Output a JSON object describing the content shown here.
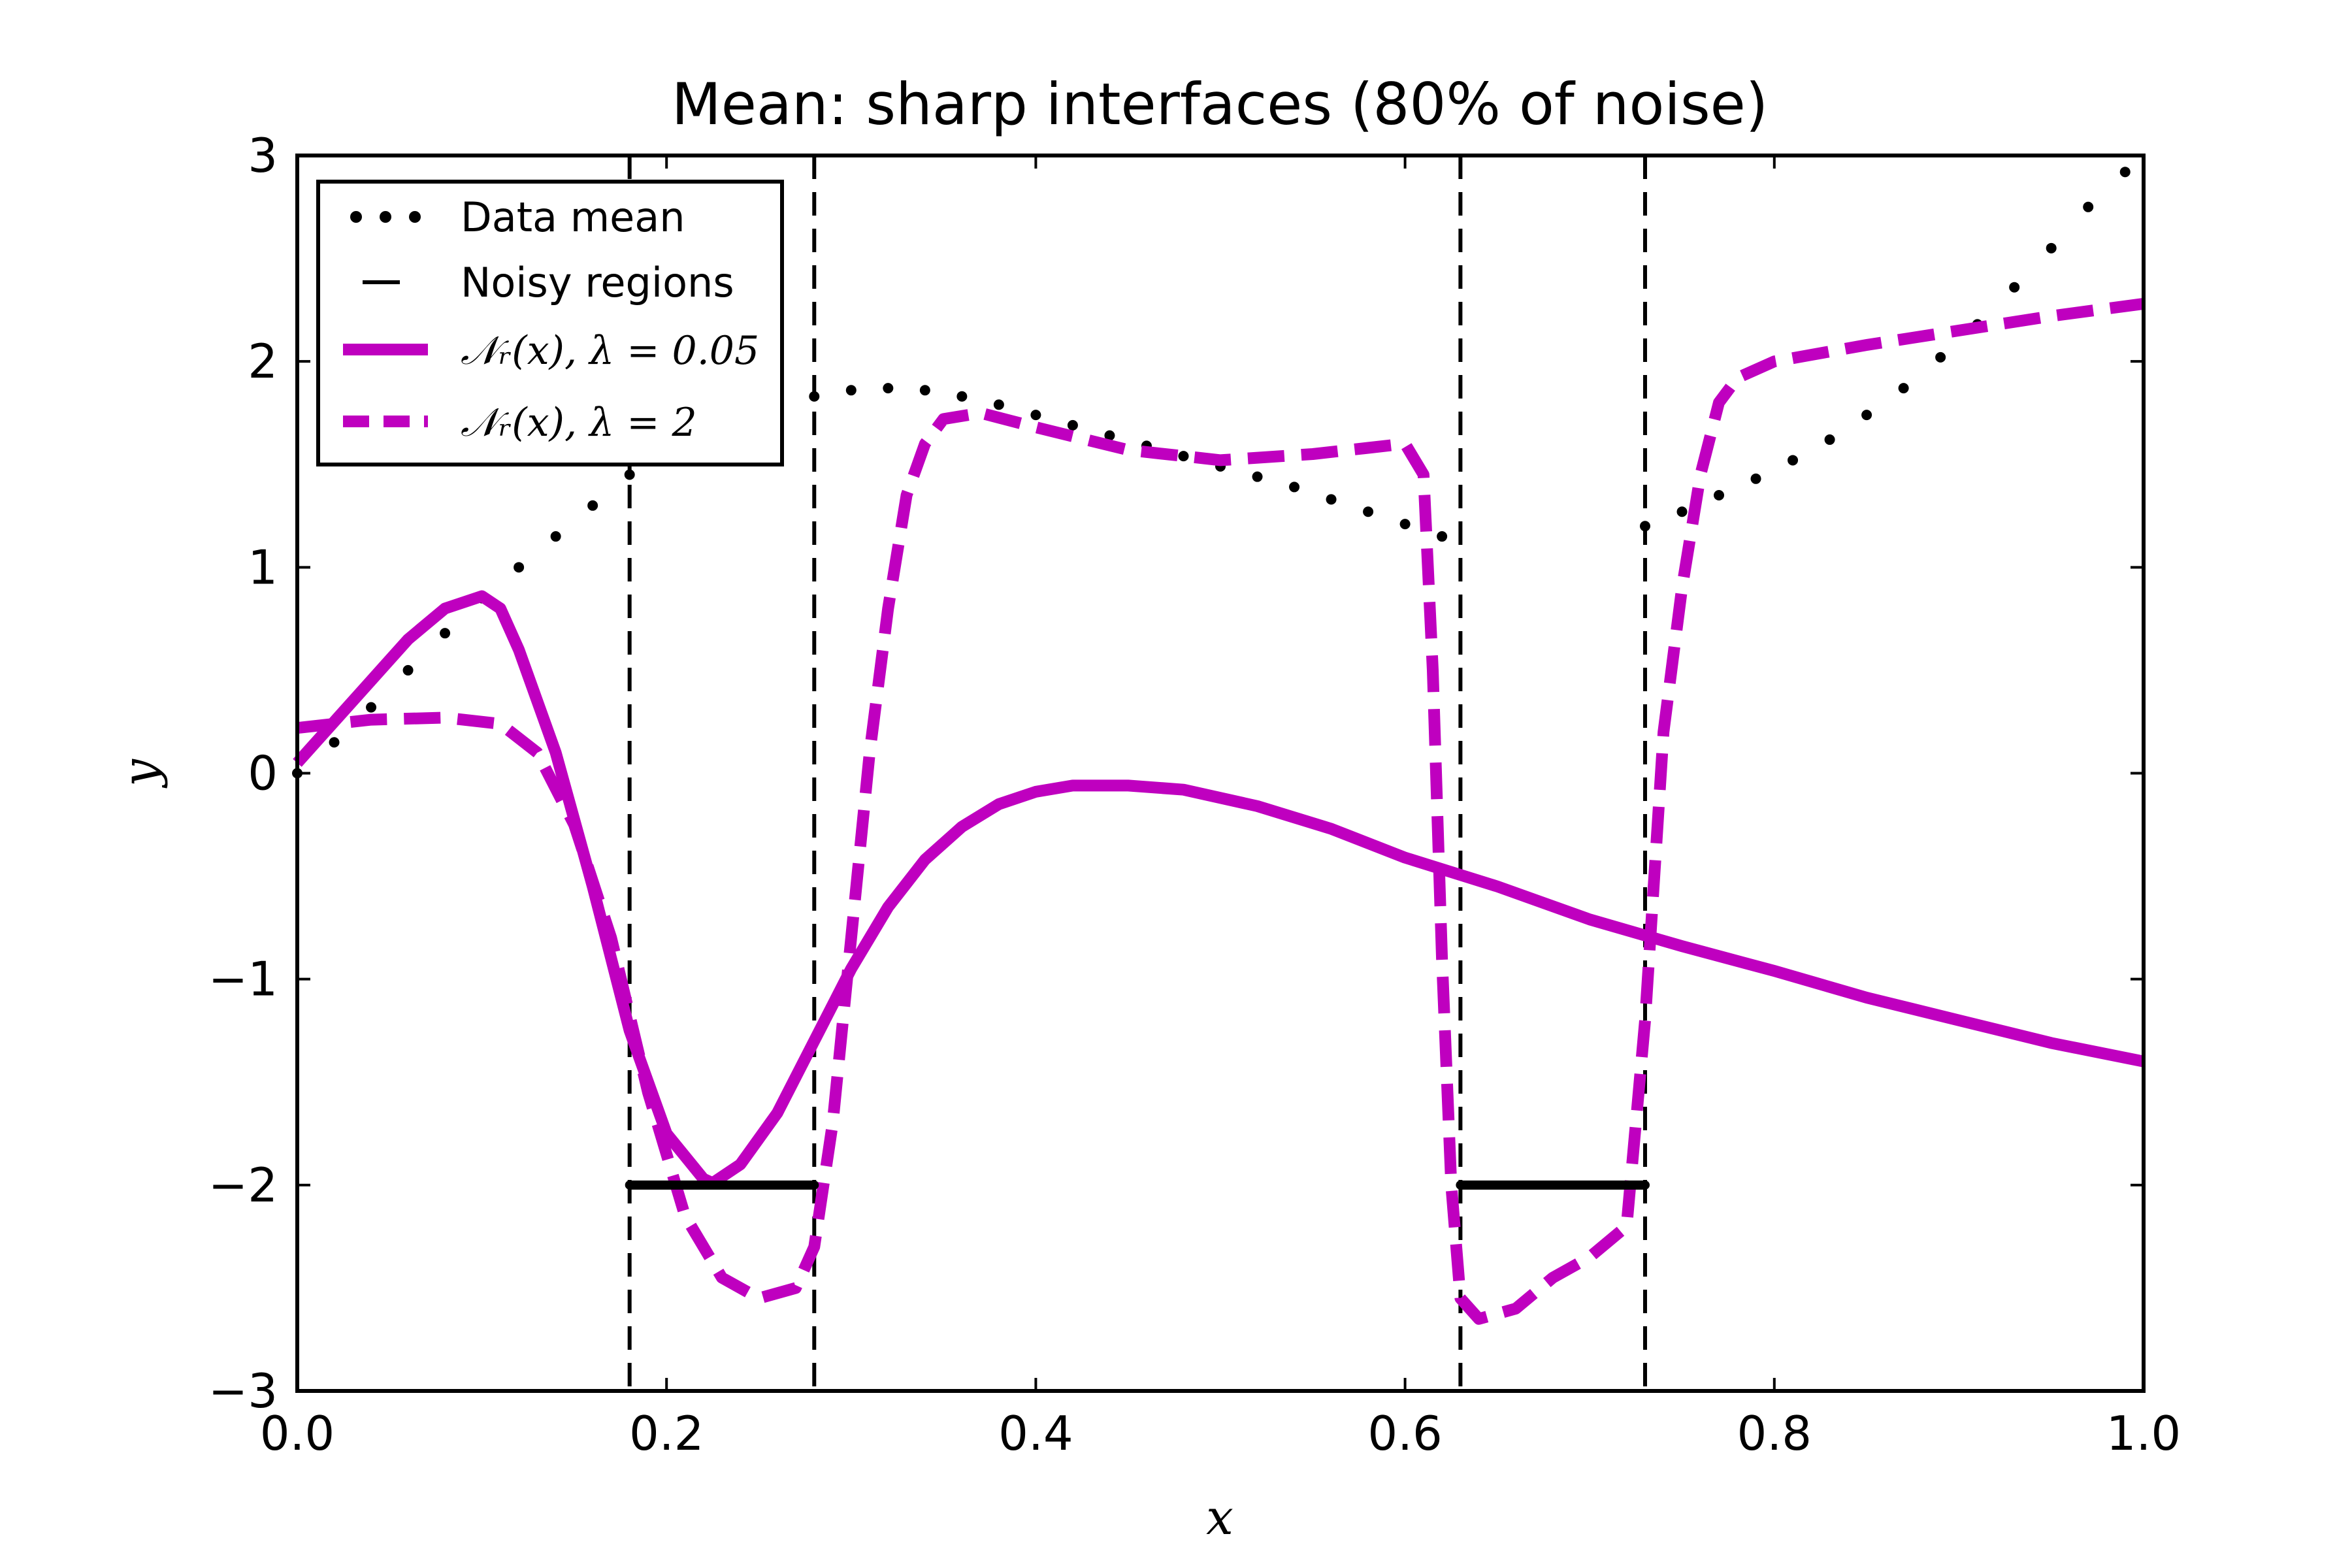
{
  "chart_data": {
    "type": "line",
    "title": "Mean: sharp interfaces (80% of noise)",
    "xlabel": "x",
    "ylabel": "y",
    "xlim": [
      0.0,
      1.0
    ],
    "ylim": [
      -3,
      3
    ],
    "xticks": [
      0.0,
      0.2,
      0.4,
      0.6,
      0.8,
      1.0
    ],
    "xtick_labels": [
      "0.0",
      "0.2",
      "0.4",
      "0.6",
      "0.8",
      "1.0"
    ],
    "yticks": [
      3,
      2,
      1,
      0,
      -1,
      -2,
      -3
    ],
    "ytick_labels": [
      "3",
      "2",
      "1",
      "0",
      "−1",
      "−2",
      "−3"
    ],
    "legend_position": "top-left",
    "legend": [
      {
        "label": "Data mean",
        "style": "dotted",
        "color": "#000000"
      },
      {
        "label": "Noisy regions",
        "style": "dashed",
        "color": "#000000"
      },
      {
        "label": "𝒩ᵣ(x),  λ = 0.05",
        "style": "solid",
        "color": "#bf00bf"
      },
      {
        "label": "𝒩ᵣ(x),  λ = 2",
        "style": "dashed",
        "color": "#bf00bf"
      }
    ],
    "noisy_region_boundaries": [
      0.18,
      0.28,
      0.63,
      0.73
    ],
    "noisy_region_segments": [
      {
        "x": [
          0.18,
          0.28
        ],
        "y": -2
      },
      {
        "x": [
          0.63,
          0.73
        ],
        "y": -2
      }
    ],
    "series": [
      {
        "name": "Data mean",
        "color": "#000000",
        "style": "dotted",
        "segments": [
          {
            "x": [
              0.0,
              0.02,
              0.04,
              0.06,
              0.08,
              0.1,
              0.12,
              0.14,
              0.16,
              0.18
            ],
            "y": [
              0.0,
              0.15,
              0.32,
              0.5,
              0.68,
              0.85,
              1.0,
              1.15,
              1.3,
              1.45
            ]
          },
          {
            "x": [
              0.28,
              0.3,
              0.32,
              0.34,
              0.36,
              0.38,
              0.4,
              0.42,
              0.44,
              0.46,
              0.48,
              0.5,
              0.52,
              0.54,
              0.56,
              0.58,
              0.6,
              0.62
            ],
            "y": [
              1.83,
              1.86,
              1.87,
              1.86,
              1.83,
              1.79,
              1.74,
              1.69,
              1.64,
              1.59,
              1.54,
              1.49,
              1.44,
              1.39,
              1.33,
              1.27,
              1.21,
              1.15
            ]
          },
          {
            "x": [
              0.73,
              0.75,
              0.77,
              0.79,
              0.81,
              0.83,
              0.85,
              0.87,
              0.89,
              0.91,
              0.93,
              0.95,
              0.97,
              0.99
            ],
            "y": [
              1.2,
              1.27,
              1.35,
              1.43,
              1.52,
              1.62,
              1.74,
              1.87,
              2.02,
              2.18,
              2.36,
              2.55,
              2.75,
              2.92
            ]
          }
        ]
      },
      {
        "name": "N_r(x), lambda=0.05",
        "color": "#bf00bf",
        "style": "solid",
        "x": [
          0.0,
          0.02,
          0.04,
          0.06,
          0.08,
          0.1,
          0.11,
          0.12,
          0.14,
          0.16,
          0.18,
          0.2,
          0.22,
          0.225,
          0.24,
          0.26,
          0.28,
          0.3,
          0.32,
          0.34,
          0.36,
          0.38,
          0.4,
          0.42,
          0.45,
          0.48,
          0.52,
          0.56,
          0.6,
          0.65,
          0.7,
          0.75,
          0.8,
          0.85,
          0.9,
          0.95,
          1.0
        ],
        "y": [
          0.05,
          0.25,
          0.45,
          0.65,
          0.8,
          0.86,
          0.8,
          0.6,
          0.1,
          -0.55,
          -1.25,
          -1.75,
          -1.97,
          -1.99,
          -1.9,
          -1.65,
          -1.3,
          -0.95,
          -0.65,
          -0.42,
          -0.26,
          -0.15,
          -0.09,
          -0.06,
          -0.06,
          -0.08,
          -0.16,
          -0.27,
          -0.41,
          -0.55,
          -0.71,
          -0.84,
          -0.96,
          -1.09,
          -1.2,
          -1.31,
          -1.4
        ]
      },
      {
        "name": "N_r(x), lambda=2",
        "color": "#bf00bf",
        "style": "dashed",
        "x": [
          0.0,
          0.04,
          0.08,
          0.11,
          0.13,
          0.15,
          0.17,
          0.19,
          0.21,
          0.23,
          0.25,
          0.27,
          0.28,
          0.29,
          0.3,
          0.31,
          0.32,
          0.33,
          0.34,
          0.35,
          0.37,
          0.4,
          0.45,
          0.5,
          0.55,
          0.58,
          0.6,
          0.61,
          0.615,
          0.62,
          0.625,
          0.63,
          0.64,
          0.66,
          0.68,
          0.7,
          0.72,
          0.73,
          0.74,
          0.75,
          0.76,
          0.77,
          0.78,
          0.8,
          0.85,
          0.9,
          0.95,
          1.0
        ],
        "y": [
          0.22,
          0.26,
          0.27,
          0.24,
          0.1,
          -0.25,
          -0.8,
          -1.55,
          -2.15,
          -2.45,
          -2.55,
          -2.5,
          -2.3,
          -1.7,
          -0.8,
          0.1,
          0.8,
          1.35,
          1.6,
          1.72,
          1.75,
          1.68,
          1.57,
          1.52,
          1.55,
          1.58,
          1.6,
          1.45,
          0.5,
          -0.9,
          -2.0,
          -2.55,
          -2.65,
          -2.6,
          -2.45,
          -2.35,
          -2.2,
          -1.2,
          0.2,
          0.9,
          1.45,
          1.8,
          1.92,
          2.0,
          2.08,
          2.15,
          2.22,
          2.28
        ]
      }
    ]
  }
}
